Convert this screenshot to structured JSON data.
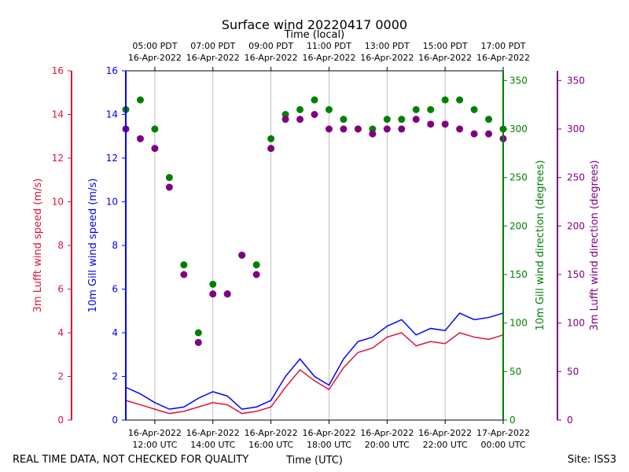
{
  "chart_data": {
    "type": "line+scatter",
    "title": "Surface wind 20220417 0000",
    "top_axis_label": "Time (local)",
    "xlabel": "Time (UTC)",
    "footer_left": "REAL TIME DATA, NOT CHECKED FOR QUALITY",
    "footer_right": "Site: ISS3",
    "x_range_utc_hours": [
      11.0,
      24.0
    ],
    "x_ticks_bottom": [
      {
        "hour": 12,
        "date": "16-Apr-2022",
        "time": "12:00 UTC"
      },
      {
        "hour": 14,
        "date": "16-Apr-2022",
        "time": "14:00 UTC"
      },
      {
        "hour": 16,
        "date": "16-Apr-2022",
        "time": "16:00 UTC"
      },
      {
        "hour": 18,
        "date": "16-Apr-2022",
        "time": "18:00 UTC"
      },
      {
        "hour": 20,
        "date": "16-Apr-2022",
        "time": "20:00 UTC"
      },
      {
        "hour": 22,
        "date": "16-Apr-2022",
        "time": "22:00 UTC"
      },
      {
        "hour": 24,
        "date": "17-Apr-2022",
        "time": "00:00 UTC"
      }
    ],
    "x_ticks_top": [
      {
        "hour": 12,
        "time": "05:00 PDT",
        "date": "16-Apr-2022"
      },
      {
        "hour": 14,
        "time": "07:00 PDT",
        "date": "16-Apr-2022"
      },
      {
        "hour": 16,
        "time": "09:00 PDT",
        "date": "16-Apr-2022"
      },
      {
        "hour": 18,
        "time": "11:00 PDT",
        "date": "16-Apr-2022"
      },
      {
        "hour": 20,
        "time": "13:00 PDT",
        "date": "16-Apr-2022"
      },
      {
        "hour": 22,
        "time": "15:00 PDT",
        "date": "16-Apr-2022"
      },
      {
        "hour": 24,
        "time": "17:00 PDT",
        "date": "16-Apr-2022"
      }
    ],
    "axes": {
      "lufft_speed": {
        "label": "3m Lufft wind speed (m/s)",
        "color": "#dc143c",
        "ylim": [
          0,
          16
        ],
        "ticks": [
          0,
          2,
          4,
          6,
          8,
          10,
          12,
          14,
          16
        ]
      },
      "gill_speed": {
        "label": "10m Gill wind speed (m/s)",
        "color": "#0000ff",
        "ylim": [
          0,
          16
        ],
        "ticks": [
          0,
          2,
          4,
          6,
          8,
          10,
          12,
          14,
          16
        ]
      },
      "gill_dir": {
        "label": "10m Gill wind direction (degrees)",
        "color": "#008000",
        "ylim": [
          0,
          360
        ],
        "ticks": [
          0,
          50,
          100,
          150,
          200,
          250,
          300,
          350
        ]
      },
      "lufft_dir": {
        "label": "3m Lufft wind direction (degrees)",
        "color": "#800080",
        "ylim": [
          0,
          360
        ],
        "ticks": [
          0,
          50,
          100,
          150,
          200,
          250,
          300,
          350
        ]
      }
    },
    "series": [
      {
        "name": "10m Gill wind speed",
        "kind": "line",
        "axis": "gill_speed",
        "color": "#0000ff",
        "x": [
          11.0,
          11.5,
          12.0,
          12.5,
          13.0,
          13.5,
          14.0,
          14.5,
          15.0,
          15.5,
          16.0,
          16.5,
          17.0,
          17.5,
          18.0,
          18.5,
          19.0,
          19.5,
          20.0,
          20.5,
          21.0,
          21.5,
          22.0,
          22.5,
          23.0,
          23.5,
          24.0
        ],
        "y": [
          1.5,
          1.2,
          0.8,
          0.5,
          0.6,
          1.0,
          1.3,
          1.1,
          0.5,
          0.6,
          0.9,
          2.0,
          2.8,
          2.0,
          1.6,
          2.8,
          3.6,
          3.8,
          4.3,
          4.6,
          3.9,
          4.2,
          4.1,
          4.9,
          4.6,
          4.7,
          4.9
        ]
      },
      {
        "name": "3m Lufft wind speed",
        "kind": "line",
        "axis": "lufft_speed",
        "color": "#dc143c",
        "x": [
          11.0,
          11.5,
          12.0,
          12.5,
          13.0,
          13.5,
          14.0,
          14.5,
          15.0,
          15.5,
          16.0,
          16.5,
          17.0,
          17.5,
          18.0,
          18.5,
          19.0,
          19.5,
          20.0,
          20.5,
          21.0,
          21.5,
          22.0,
          22.5,
          23.0,
          23.5,
          24.0
        ],
        "y": [
          0.9,
          0.7,
          0.5,
          0.3,
          0.4,
          0.6,
          0.8,
          0.7,
          0.3,
          0.4,
          0.6,
          1.5,
          2.3,
          1.8,
          1.4,
          2.4,
          3.1,
          3.3,
          3.8,
          4.0,
          3.4,
          3.6,
          3.5,
          4.0,
          3.8,
          3.7,
          3.9
        ]
      },
      {
        "name": "10m Gill wind direction",
        "kind": "scatter",
        "axis": "gill_dir",
        "color": "#008000",
        "x": [
          11.0,
          11.5,
          12.0,
          12.5,
          13.0,
          13.5,
          14.0,
          14.5,
          15.0,
          15.5,
          16.0,
          16.5,
          17.0,
          17.5,
          18.0,
          18.5,
          19.0,
          19.5,
          20.0,
          20.5,
          21.0,
          21.5,
          22.0,
          22.5,
          23.0,
          23.5,
          24.0
        ],
        "y": [
          320,
          330,
          300,
          250,
          160,
          90,
          140,
          130,
          170,
          160,
          290,
          315,
          320,
          330,
          320,
          310,
          300,
          300,
          310,
          310,
          320,
          320,
          330,
          330,
          320,
          310,
          300
        ]
      },
      {
        "name": "3m Lufft wind direction",
        "kind": "scatter",
        "axis": "lufft_dir",
        "color": "#800080",
        "x": [
          11.0,
          11.5,
          12.0,
          12.5,
          13.0,
          13.5,
          14.0,
          14.5,
          15.0,
          15.5,
          16.0,
          16.5,
          17.0,
          17.5,
          18.0,
          18.5,
          19.0,
          19.5,
          20.0,
          20.5,
          21.0,
          21.5,
          22.0,
          22.5,
          23.0,
          23.5,
          24.0
        ],
        "y": [
          300,
          290,
          280,
          240,
          150,
          80,
          130,
          130,
          170,
          150,
          280,
          310,
          310,
          315,
          300,
          300,
          300,
          295,
          300,
          300,
          310,
          305,
          305,
          300,
          295,
          295,
          290
        ]
      }
    ]
  }
}
